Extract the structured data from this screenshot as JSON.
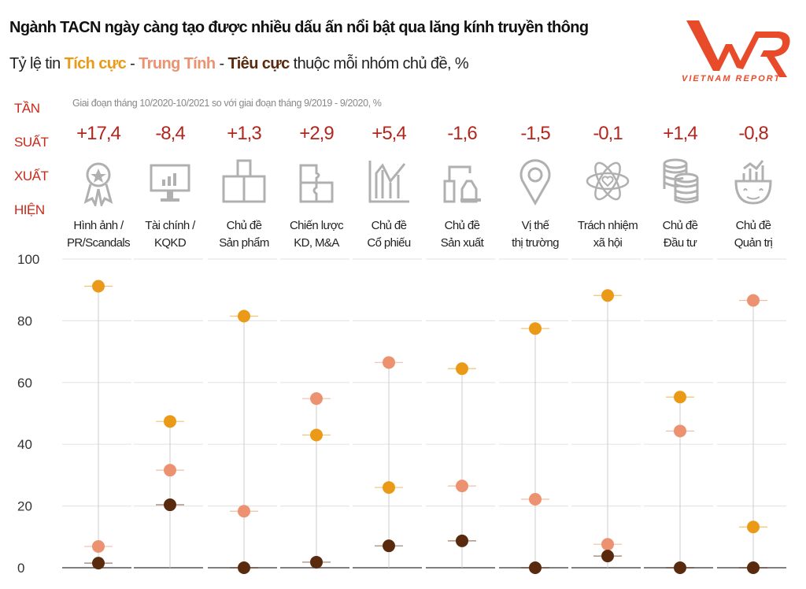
{
  "header": {
    "title": "Ngành TACN ngày càng tạo được nhiều dấu ấn nổi bật qua lăng kính truyền thông",
    "subtitle_prefix": "Tỷ lệ tin ",
    "positive": "Tích cực",
    "sep1": " - ",
    "neutral": "Trung Tính",
    "sep2": " - ",
    "negative": "Tiêu cực",
    "subtitle_suffix": " thuộc mỗi nhóm chủ đề, %"
  },
  "logo": {
    "mark": "VNR",
    "text": "VIETNAM REPORT",
    "color": "#e84b2a"
  },
  "side_label": [
    "TẦN",
    "SUẤT",
    "XUẤT",
    "HIỆN"
  ],
  "note": "Giai đoạn tháng 10/2020-10/2021 so với giai đoạn tháng 9/2019 - 9/2020, %",
  "colors": {
    "positive": "#eb9a17",
    "neutral": "#ec9270",
    "negative": "#5a2a0e",
    "change": "#b3261e",
    "grid": "#e6e6e6",
    "icon": "#b0b0b0"
  },
  "chart_data": {
    "type": "scatter",
    "ylim": [
      0,
      100
    ],
    "yticks": [
      "0",
      "20",
      "40",
      "60",
      "80",
      "100"
    ],
    "grid": true,
    "categories": [
      {
        "line1": "Hình ảnh /",
        "line2": "PR/Scandals",
        "change": "+17,4",
        "icon": "award-ribbon-icon"
      },
      {
        "line1": "Tài chính /",
        "line2": "KQKD",
        "change": "-8,4",
        "icon": "monitor-chart-icon"
      },
      {
        "line1": "Chủ đề",
        "line2": "Sản phẩm",
        "change": "+1,3",
        "icon": "boxes-icon"
      },
      {
        "line1": "Chiến lược",
        "line2": "KD, M&A",
        "change": "+2,9",
        "icon": "puzzle-icon"
      },
      {
        "line1": "Chủ đề",
        "line2": "Cổ phiếu",
        "change": "+5,4",
        "icon": "stock-chart-icon"
      },
      {
        "line1": "Chủ đề",
        "line2": "Sản xuất",
        "change": "-1,6",
        "icon": "factory-machine-icon"
      },
      {
        "line1": "Vị thế",
        "line2": "thị trường",
        "change": "-1,5",
        "icon": "location-pin-icon"
      },
      {
        "line1": "Trách nhiệm",
        "line2": "xã hội",
        "change": "-0,1",
        "icon": "atom-heart-icon"
      },
      {
        "line1": "Chủ đề",
        "line2": "Đầu tư",
        "change": "+1,4",
        "icon": "coin-stack-icon"
      },
      {
        "line1": "Chủ đề",
        "line2": "Quản trị",
        "change": "-0,8",
        "icon": "head-chart-icon"
      }
    ],
    "series": [
      {
        "name": "Tích cực",
        "values": [
          91.2,
          47.4,
          81.5,
          43.0,
          26.0,
          64.5,
          77.5,
          88.2,
          55.3,
          13.2
        ]
      },
      {
        "name": "Trung Tính",
        "values": [
          6.9,
          31.6,
          18.3,
          54.8,
          66.5,
          26.5,
          22.2,
          7.6,
          44.3,
          86.6
        ]
      },
      {
        "name": "Tiêu cực",
        "values": [
          1.5,
          20.4,
          0.0,
          1.8,
          7.1,
          8.7,
          0.0,
          3.8,
          0.0,
          0.0
        ]
      }
    ]
  }
}
